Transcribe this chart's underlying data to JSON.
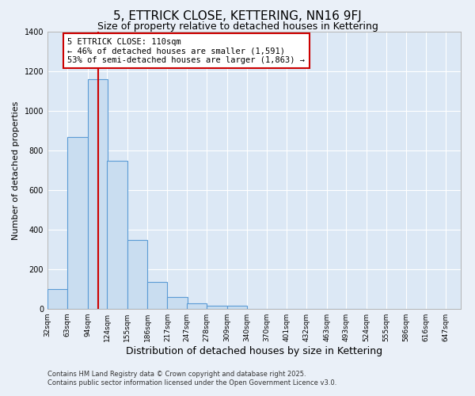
{
  "title": "5, ETTRICK CLOSE, KETTERING, NN16 9FJ",
  "subtitle": "Size of property relative to detached houses in Kettering",
  "xlabel": "Distribution of detached houses by size in Kettering",
  "ylabel": "Number of detached properties",
  "bar_values": [
    100,
    870,
    1160,
    750,
    350,
    135,
    60,
    30,
    15,
    15,
    0,
    0,
    0,
    0,
    0,
    0
  ],
  "bar_left_edges": [
    32,
    63,
    94,
    124,
    155,
    186,
    217,
    247,
    278,
    309,
    340,
    370,
    401,
    432,
    463,
    493
  ],
  "bin_width": 31,
  "tick_labels": [
    "32sqm",
    "63sqm",
    "94sqm",
    "124sqm",
    "155sqm",
    "186sqm",
    "217sqm",
    "247sqm",
    "278sqm",
    "309sqm",
    "340sqm",
    "370sqm",
    "401sqm",
    "432sqm",
    "463sqm",
    "493sqm",
    "524sqm",
    "555sqm",
    "586sqm",
    "616sqm",
    "647sqm"
  ],
  "tick_positions": [
    32,
    63,
    94,
    124,
    155,
    186,
    217,
    247,
    278,
    309,
    340,
    370,
    401,
    432,
    463,
    493,
    524,
    555,
    586,
    616,
    647
  ],
  "bar_color": "#c9ddf0",
  "bar_edge_color": "#5b9bd5",
  "background_color": "#eaf0f8",
  "plot_bg_color": "#dce8f5",
  "vline_x": 110,
  "vline_color": "#cc0000",
  "ylim": [
    0,
    1400
  ],
  "xlim": [
    32,
    670
  ],
  "annotation_title": "5 ETTRICK CLOSE: 110sqm",
  "annotation_line1": "← 46% of detached houses are smaller (1,591)",
  "annotation_line2": "53% of semi-detached houses are larger (1,863) →",
  "annotation_box_color": "#ffffff",
  "annotation_box_edge": "#cc0000",
  "footer1": "Contains HM Land Registry data © Crown copyright and database right 2025.",
  "footer2": "Contains public sector information licensed under the Open Government Licence v3.0.",
  "title_fontsize": 11,
  "subtitle_fontsize": 9,
  "ylabel_fontsize": 8,
  "xlabel_fontsize": 9,
  "tick_fontsize": 6.5,
  "annotation_fontsize": 7.5,
  "footer_fontsize": 6,
  "yticks": [
    0,
    200,
    400,
    600,
    800,
    1000,
    1200,
    1400
  ]
}
